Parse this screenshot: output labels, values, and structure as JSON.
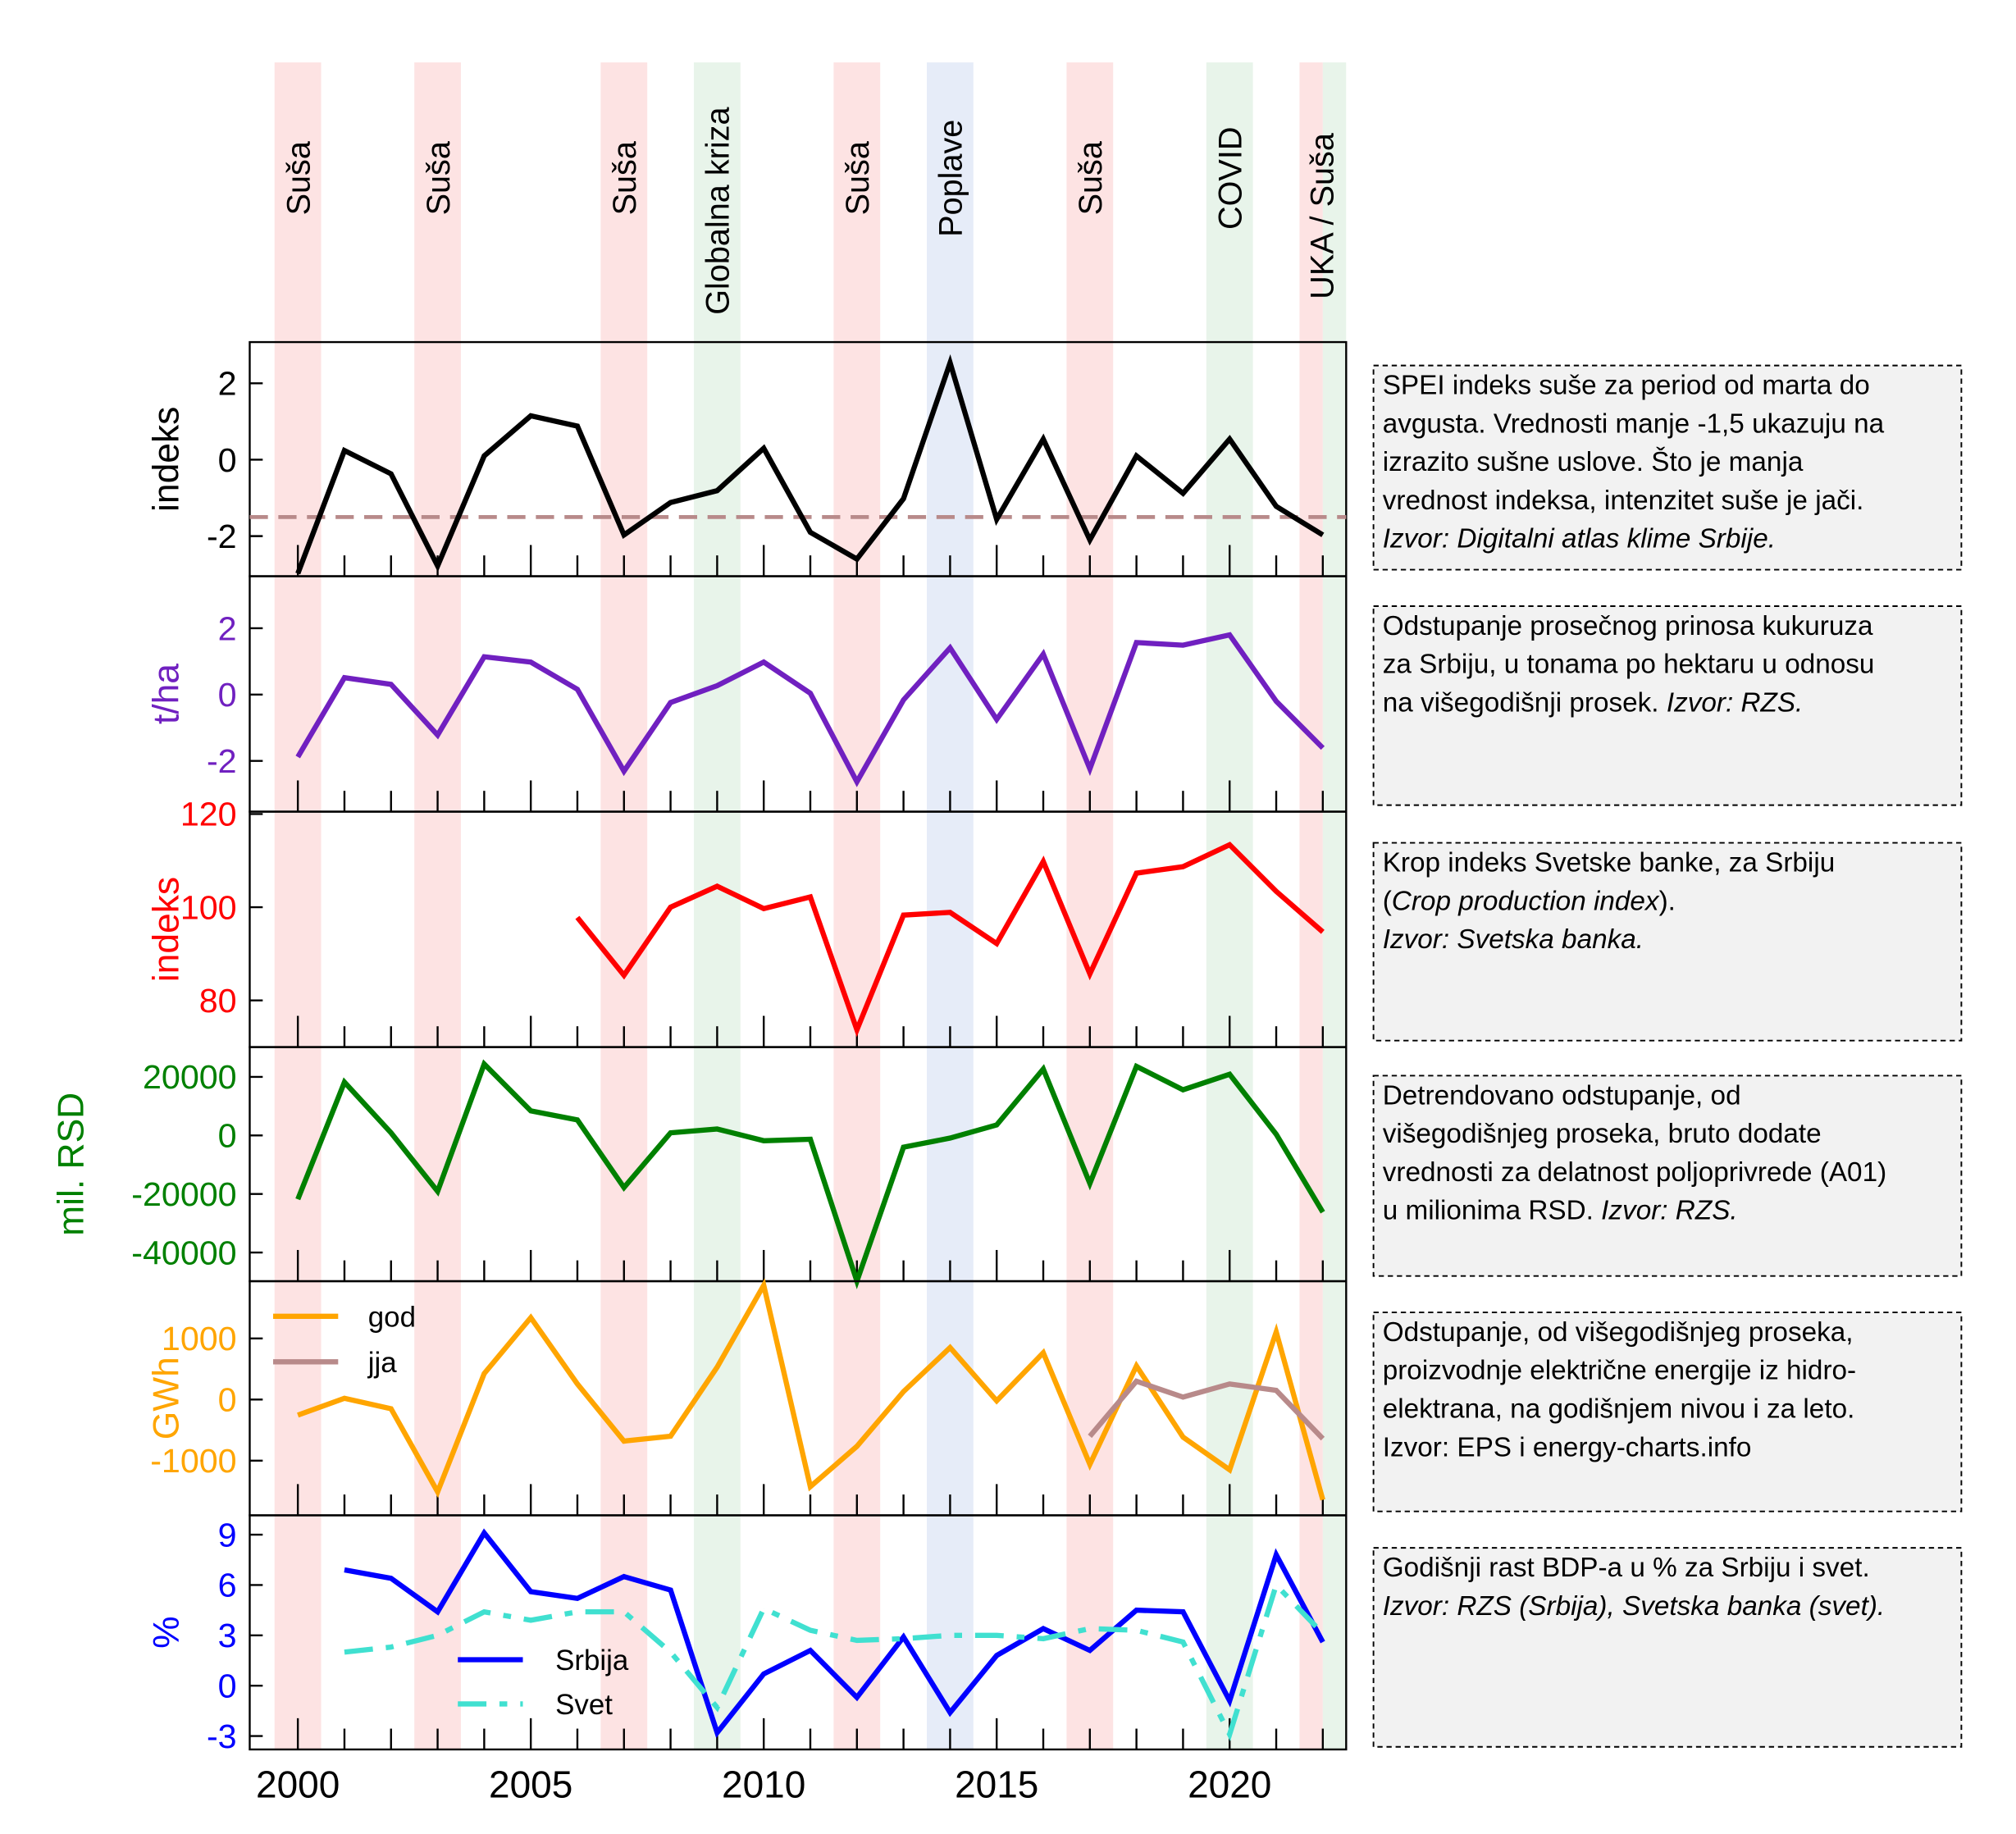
{
  "events": [
    {
      "label": "Suša",
      "from": 1999.5,
      "to": 2000.5,
      "color": "#fde3e3"
    },
    {
      "label": "Suša",
      "from": 2002.5,
      "to": 2003.5,
      "color": "#fde3e3"
    },
    {
      "label": "Suša",
      "from": 2006.5,
      "to": 2007.5,
      "color": "#fde3e3"
    },
    {
      "label": "Globalna kriza",
      "from": 2008.5,
      "to": 2009.5,
      "color": "#e8f4ea"
    },
    {
      "label": "Suša",
      "from": 2011.5,
      "to": 2012.5,
      "color": "#fde3e3"
    },
    {
      "label": "Poplave",
      "from": 2013.5,
      "to": 2014.5,
      "color": "#e6ecf8"
    },
    {
      "label": "Suša",
      "from": 2016.5,
      "to": 2017.5,
      "color": "#fde3e3"
    },
    {
      "label": "COVID",
      "from": 2019.5,
      "to": 2020.5,
      "color": "#e8f4ea"
    },
    {
      "label": "UKA / Suša",
      "from": 2021.5,
      "to": 2022,
      "color": "#fde3e3",
      "color2": "#e8f4ea",
      "to2": 2022.5
    }
  ],
  "chart_data": [
    {
      "type": "line",
      "ylabel": "indeks",
      "ylabel_color": "#000000",
      "ylim": [
        -3.05,
        3.08
      ],
      "yticks": [
        2,
        0,
        -2
      ],
      "reference_line": {
        "y": -1.5,
        "color": "#b88a8a",
        "style": "dashed"
      },
      "series": [
        {
          "color": "#000000",
          "x": [
            2000,
            2001,
            2002,
            2003,
            2004,
            2005,
            2006,
            2007,
            2008,
            2009,
            2010,
            2011,
            2012,
            2013,
            2014,
            2015,
            2016,
            2017,
            2018,
            2019,
            2020,
            2021,
            2022
          ],
          "values": [
            -2.98,
            0.24,
            -0.37,
            -2.78,
            0.1,
            1.15,
            0.88,
            -1.97,
            -1.12,
            -0.81,
            0.3,
            -1.9,
            -2.6,
            -1.02,
            2.54,
            -1.56,
            0.54,
            -2.1,
            0.1,
            -0.88,
            0.54,
            -1.22,
            -1.97
          ]
        }
      ],
      "note": [
        [
          {
            "t": "SPEI indeks suše za period od marta do"
          }
        ],
        [
          {
            "t": "avgusta. Vrednosti manje -1,5 ukazuju na"
          }
        ],
        [
          {
            "t": "izrazito sušne uslove.  Što je manja"
          }
        ],
        [
          {
            "t": "vrednost indeksa, intenzitet suše je jači."
          }
        ],
        [
          {
            "t": "Izvor: Digitalni atlas klime Srbije.",
            "i": true
          }
        ]
      ]
    },
    {
      "type": "line",
      "ylabel": "t/ha",
      "ylabel_color": "#7020c0",
      "ylim": [
        -3.53,
        3.57
      ],
      "yticks": [
        2,
        0,
        -2
      ],
      "series": [
        {
          "color": "#7020c0",
          "x": [
            2000,
            2001,
            2002,
            2003,
            2004,
            2005,
            2006,
            2007,
            2008,
            2009,
            2010,
            2011,
            2012,
            2013,
            2014,
            2015,
            2016,
            2017,
            2018,
            2019,
            2020,
            2021,
            2022
          ],
          "values": [
            -1.88,
            0.51,
            0.31,
            -1.22,
            1.14,
            0.98,
            0.16,
            -2.31,
            -0.24,
            0.27,
            0.98,
            0.04,
            -2.63,
            -0.16,
            1.41,
            -0.75,
            1.22,
            -2.24,
            1.57,
            1.49,
            1.8,
            -0.2,
            -1.61
          ]
        }
      ],
      "note": [
        [
          {
            "t": "Odstupanje prosečnog prinosa kukuruza"
          }
        ],
        [
          {
            "t": "za Srbiju, u tonama po hektaru u odnosu"
          }
        ],
        [
          {
            "t": "na višegodišnji prosek. "
          },
          {
            "t": "Izvor: RZS.",
            "i": true
          }
        ]
      ]
    },
    {
      "type": "line",
      "ylabel": "indeks",
      "ylabel_color": "#ff0000",
      "ylim": [
        70,
        120.5
      ],
      "yticks": [
        120,
        100,
        80
      ],
      "series": [
        {
          "color": "#ff0000",
          "x": [
            2006,
            2007,
            2008,
            2009,
            2010,
            2011,
            2012,
            2013,
            2014,
            2015,
            2016,
            2017,
            2018,
            2019,
            2020,
            2021,
            2022
          ],
          "values": [
            97.8,
            85.4,
            100,
            104.5,
            99.7,
            102.2,
            73.7,
            98.3,
            98.9,
            92.2,
            109.8,
            85.7,
            107.3,
            108.7,
            113.4,
            103.4,
            94.7
          ]
        }
      ],
      "note": [
        [
          {
            "t": "Krop indeks Svetske banke, za Srbiju"
          }
        ],
        [
          {
            "t": "("
          },
          {
            "t": "Crop production index",
            "i": true
          },
          {
            "t": ")."
          }
        ],
        [
          {
            "t": "Izvor: Svetska banka.",
            "i": true
          }
        ]
      ]
    },
    {
      "type": "line",
      "ylabel": "mil. RSD",
      "ylabel_color": "#008000",
      "ylim": [
        -49800,
        30200
      ],
      "yticks": [
        20000,
        0,
        -20000,
        -40000
      ],
      "series": [
        {
          "color": "#008000",
          "x": [
            2000,
            2001,
            2002,
            2003,
            2004,
            2005,
            2006,
            2007,
            2008,
            2009,
            2010,
            2011,
            2012,
            2013,
            2014,
            2015,
            2016,
            2017,
            2018,
            2019,
            2020,
            2021,
            2022
          ],
          "values": [
            -21800,
            18200,
            900,
            -19100,
            24400,
            8400,
            5300,
            -17800,
            900,
            2200,
            -1800,
            -1300,
            -49800,
            -4000,
            -900,
            3600,
            22700,
            -16400,
            23600,
            15600,
            20900,
            400,
            -26200
          ]
        }
      ],
      "note": [
        [
          {
            "t": "Detrendovano odstupanje, od"
          }
        ],
        [
          {
            "t": "višegodišnjeg proseka, bruto dodate"
          }
        ],
        [
          {
            "t": "vrednosti za delatnost poljoprivrede (A01)"
          }
        ],
        [
          {
            "t": "u milionima RSD. "
          },
          {
            "t": "Izvor: RZS.",
            "i": true
          }
        ]
      ]
    },
    {
      "type": "line",
      "ylabel": "GWh",
      "ylabel_color": "#ffa500",
      "ylim": [
        -1894,
        1936
      ],
      "yticks": [
        1000,
        0,
        -1000
      ],
      "legend": "top-left",
      "series": [
        {
          "name": "god",
          "color": "#ffa500",
          "x": [
            2000,
            2001,
            2002,
            2003,
            2004,
            2005,
            2006,
            2007,
            2008,
            2009,
            2010,
            2011,
            2012,
            2013,
            2014,
            2015,
            2016,
            2017,
            2018,
            2019,
            2020,
            2021,
            2022
          ],
          "values": [
            -255,
            20,
            -150,
            -1510,
            425,
            1340,
            255,
            -680,
            -600,
            530,
            1870,
            -1425,
            -765,
            130,
            850,
            -20,
            765,
            -1060,
            550,
            -615,
            -1150,
            1105,
            -1640
          ]
        },
        {
          "name": "jja",
          "color": "#b88a8a",
          "x": [
            2017,
            2018,
            2019,
            2020,
            2021,
            2022
          ],
          "values": [
            -600,
            300,
            40,
            255,
            150,
            -640
          ]
        }
      ],
      "note": [
        [
          {
            "t": "Odstupanje, od višegodišnjeg proseka,"
          }
        ],
        [
          {
            "t": "proizvodnje električne energije iz hidro-"
          }
        ],
        [
          {
            "t": "elektrana, na godišnjem nivou i za leto."
          }
        ],
        [
          {
            "t": "Izvor: EPS i energy-charts.info"
          }
        ]
      ]
    },
    {
      "type": "line",
      "ylabel": "%",
      "ylabel_color": "#0000ff",
      "ylim": [
        -3.8,
        10.15
      ],
      "yticks": [
        9,
        6,
        3,
        0,
        -3
      ],
      "legend": "bottom-left",
      "series": [
        {
          "name": "Srbija",
          "color": "#0000ff",
          "x": [
            2001,
            2002,
            2003,
            2004,
            2005,
            2006,
            2007,
            2008,
            2009,
            2010,
            2011,
            2012,
            2013,
            2014,
            2015,
            2016,
            2017,
            2018,
            2019,
            2020,
            2021,
            2022
          ],
          "values": [
            6.9,
            6.4,
            4.4,
            9.1,
            5.6,
            5.2,
            6.5,
            5.7,
            -2.8,
            0.7,
            2.1,
            -0.7,
            2.9,
            -1.6,
            1.8,
            3.4,
            2.1,
            4.5,
            4.4,
            -0.9,
            7.8,
            2.6
          ]
        },
        {
          "name": "Svet",
          "color": "#40e0d0",
          "style": "dashed",
          "x": [
            2001,
            2002,
            2003,
            2004,
            2005,
            2006,
            2007,
            2008,
            2009,
            2010,
            2011,
            2012,
            2013,
            2014,
            2015,
            2016,
            2017,
            2018,
            2019,
            2020,
            2021,
            2022
          ],
          "values": [
            2.0,
            2.3,
            3.0,
            4.4,
            3.9,
            4.4,
            4.4,
            2.0,
            -1.3,
            4.6,
            3.3,
            2.7,
            2.8,
            3.0,
            3.0,
            2.8,
            3.4,
            3.3,
            2.6,
            -2.9,
            6.0,
            3.1
          ]
        }
      ],
      "note": [
        [
          {
            "t": "Godišnji rast BDP-a u % za Srbiju i svet."
          }
        ],
        [
          {
            "t": "Izvor: RZS (Srbija), Svetska banka (svet).",
            "i": true
          }
        ]
      ]
    }
  ],
  "xaxis": {
    "ticks": [
      2000,
      2005,
      2010,
      2015,
      2020
    ],
    "xlim": [
      1999,
      2022.5
    ]
  }
}
